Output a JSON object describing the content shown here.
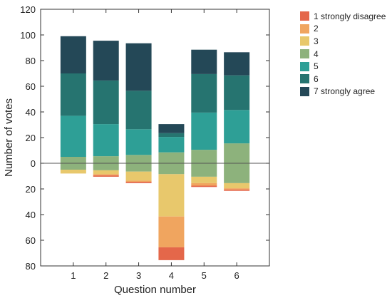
{
  "chart_data": {
    "type": "bar",
    "stacked": "diverging",
    "categories": [
      "1",
      "2",
      "3",
      "4",
      "5",
      "6"
    ],
    "xlabel": "Question number",
    "ylabel": "Number of votes",
    "ylim": [
      -80,
      120
    ],
    "yticks": [
      -80,
      -60,
      -40,
      -20,
      0,
      20,
      40,
      60,
      80,
      100,
      120
    ],
    "ytick_labels": [
      "80",
      "60",
      "40",
      "20",
      "0",
      "20",
      "40",
      "60",
      "80",
      "100",
      "120"
    ],
    "grid": false,
    "legend_position": "outside-right",
    "series": [
      {
        "name": "1 strongly disagree",
        "color": "#e4674a",
        "direction": "down",
        "values": [
          0,
          1,
          1,
          10,
          1,
          1
        ]
      },
      {
        "name": "2",
        "color": "#f0a55f",
        "direction": "down",
        "values": [
          0,
          1,
          1,
          24,
          2,
          1
        ]
      },
      {
        "name": "3",
        "color": "#e8c86c",
        "direction": "down",
        "values": [
          3,
          3,
          7,
          33,
          5,
          4
        ]
      },
      {
        "name": "4",
        "color": "#8db27c",
        "direction": "split",
        "values": [
          10,
          11,
          13,
          17,
          21,
          31
        ]
      },
      {
        "name": "5",
        "color": "#2e9f96",
        "direction": "up",
        "values": [
          32,
          25,
          20,
          12,
          29,
          26
        ]
      },
      {
        "name": "6",
        "color": "#267470",
        "direction": "up",
        "values": [
          33,
          34,
          30,
          3,
          30,
          27
        ]
      },
      {
        "name": "7 strongly agree",
        "color": "#244857",
        "direction": "up",
        "values": [
          29,
          31,
          37,
          7,
          19,
          18
        ]
      }
    ]
  }
}
